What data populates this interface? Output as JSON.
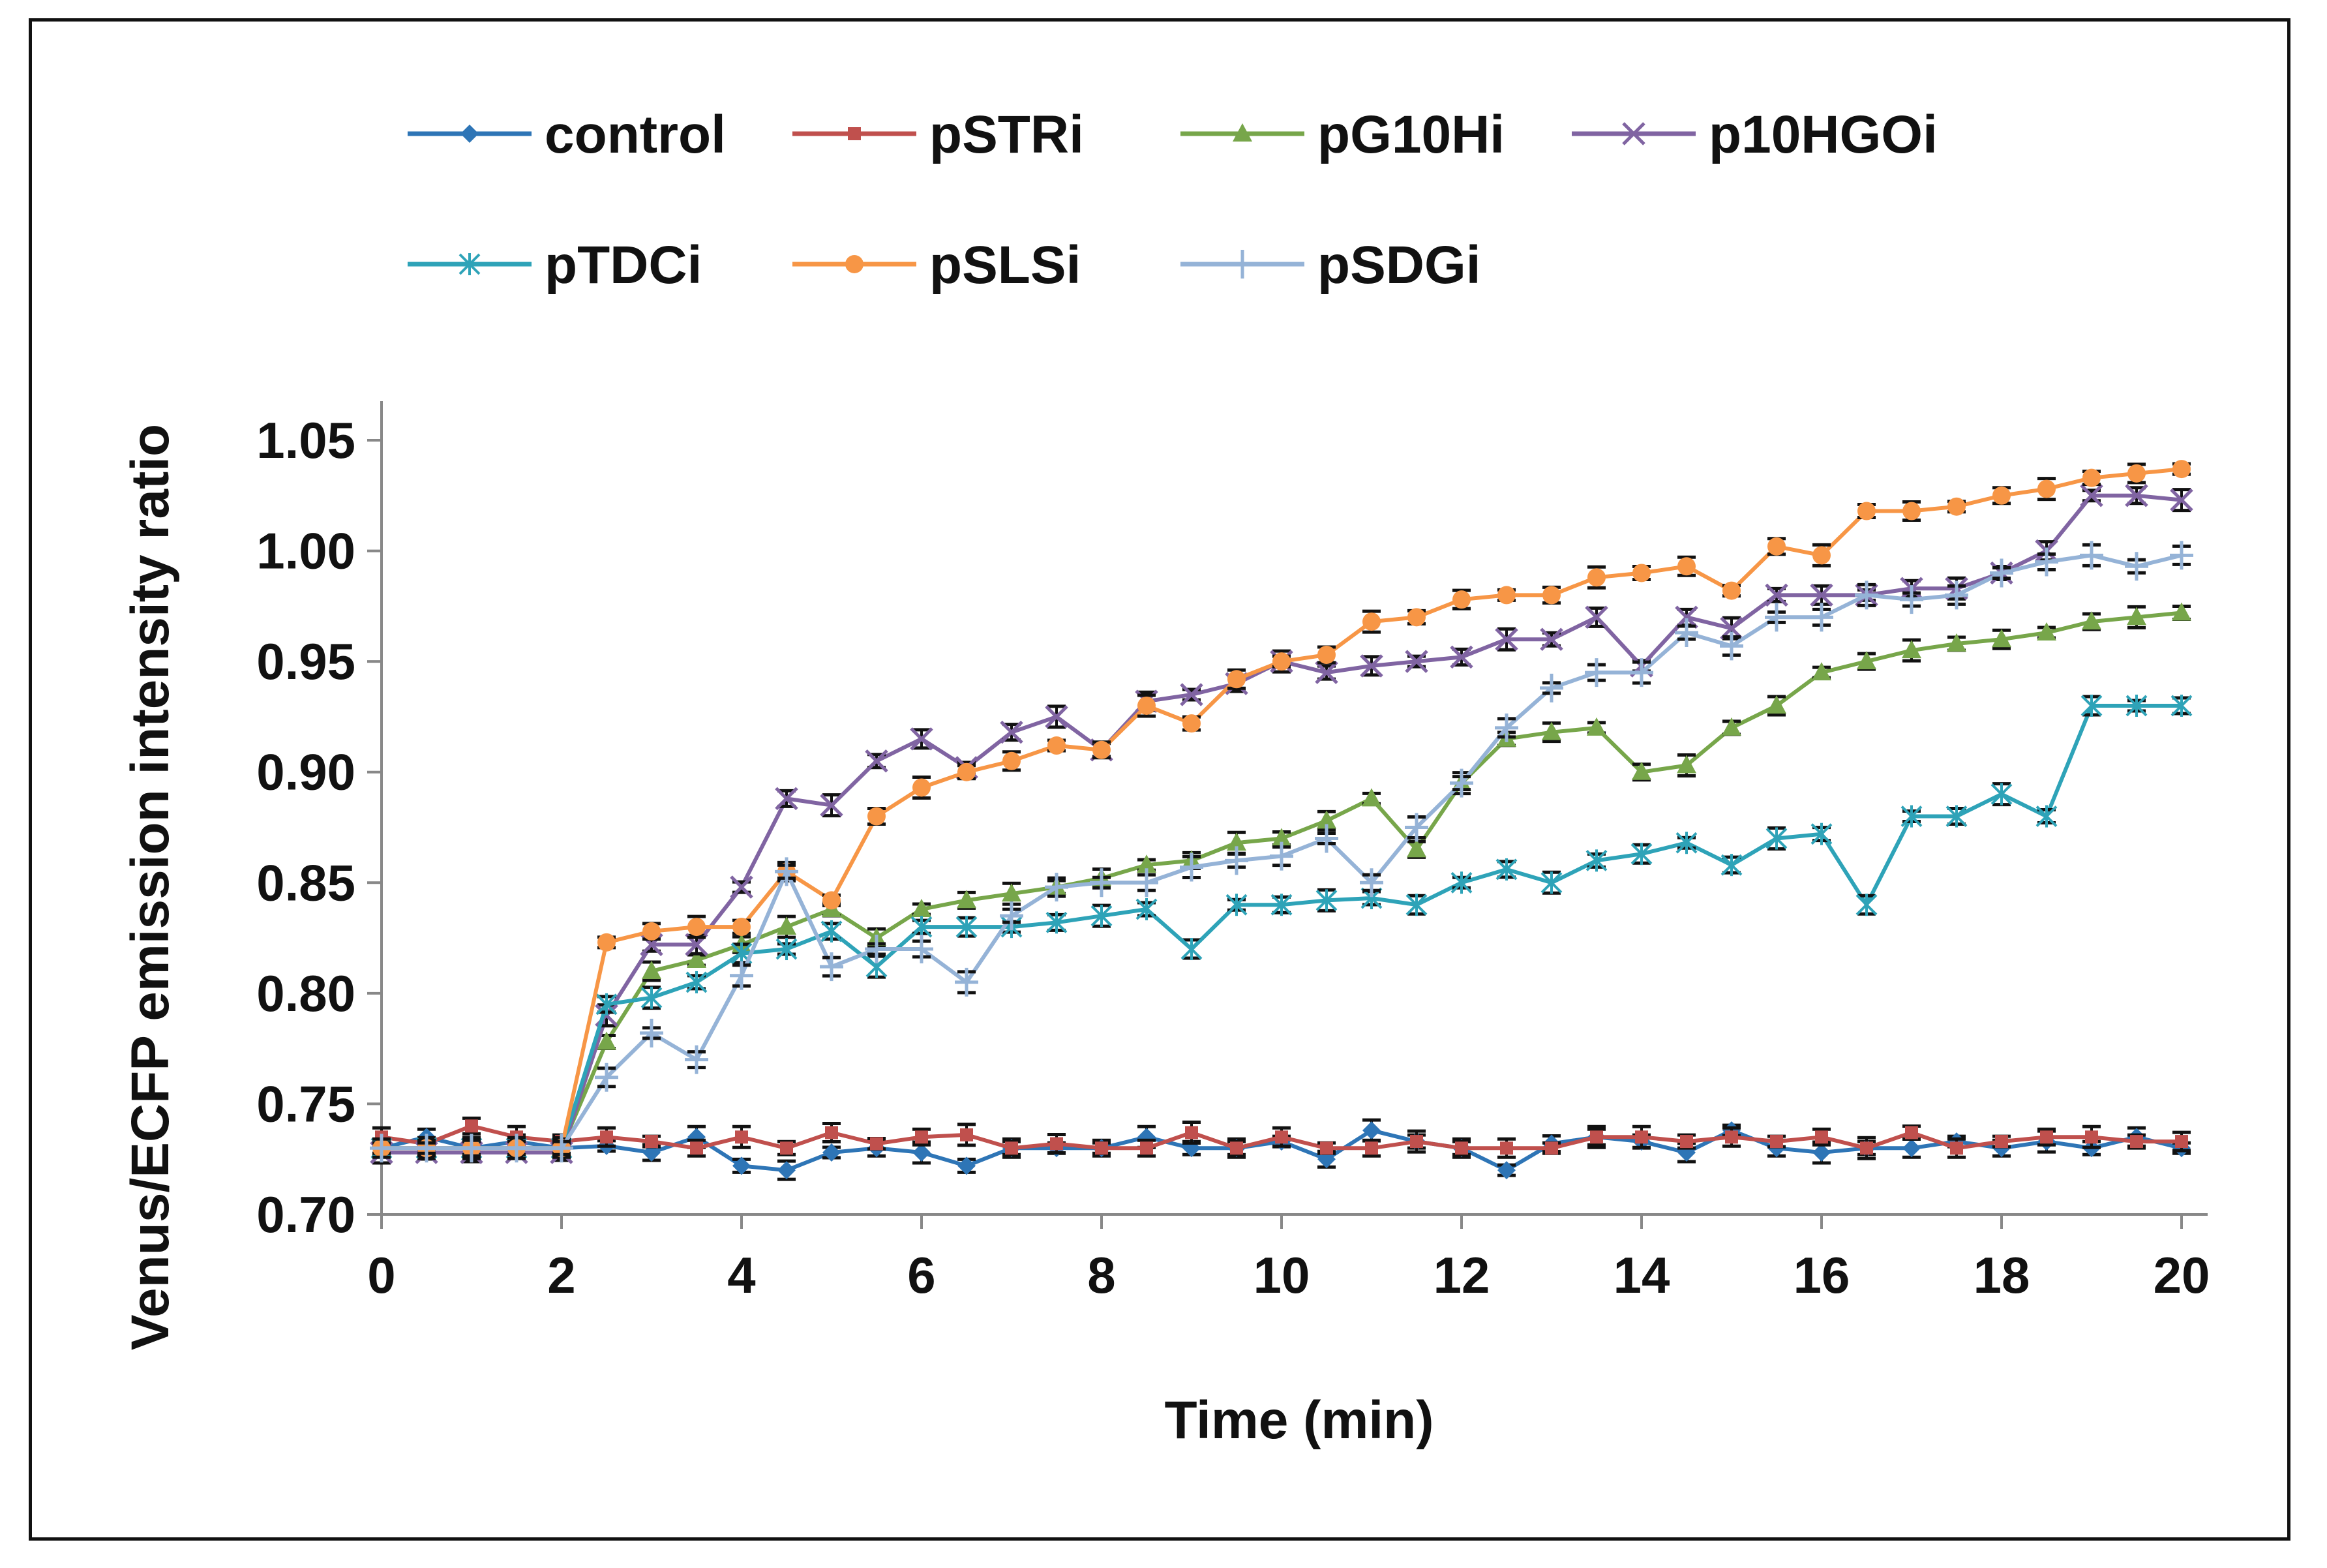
{
  "chart_data": {
    "type": "line",
    "title": "",
    "xlabel": "Time (min)",
    "ylabel": "Venus/ECFP emission intensity ratio",
    "xlim": [
      0,
      20
    ],
    "ylim": [
      0.7,
      1.05
    ],
    "xticks": [
      "0",
      "2",
      "4",
      "6",
      "8",
      "10",
      "12",
      "14",
      "16",
      "18",
      "20"
    ],
    "yticks": [
      "0.70",
      "0.75",
      "0.80",
      "0.85",
      "0.90",
      "0.95",
      "1.00",
      "1.05"
    ],
    "legend_position": "top",
    "x": [
      0,
      0.5,
      1,
      1.5,
      2,
      2.5,
      3,
      3.5,
      4,
      4.5,
      5,
      5.5,
      6,
      6.5,
      7,
      7.5,
      8,
      8.5,
      9,
      9.5,
      10,
      10.5,
      11,
      11.5,
      12,
      12.5,
      13,
      13.5,
      14,
      14.5,
      15,
      15.5,
      16,
      16.5,
      17,
      17.5,
      18,
      18.5,
      19,
      19.5,
      20
    ],
    "series": [
      {
        "name": "control",
        "color": "#2e75b6",
        "marker": "diamond",
        "values": [
          0.73,
          0.735,
          0.73,
          0.733,
          0.73,
          0.731,
          0.728,
          0.735,
          0.722,
          0.72,
          0.728,
          0.73,
          0.728,
          0.722,
          0.73,
          0.73,
          0.73,
          0.735,
          0.73,
          0.73,
          0.733,
          0.725,
          0.738,
          0.733,
          0.73,
          0.72,
          0.732,
          0.735,
          0.733,
          0.728,
          0.738,
          0.73,
          0.728,
          0.73,
          0.73,
          0.733,
          0.73,
          0.733,
          0.73,
          0.735,
          0.73
        ]
      },
      {
        "name": "pSTRi",
        "color": "#c0504d",
        "marker": "square",
        "values": [
          0.735,
          0.732,
          0.74,
          0.735,
          0.733,
          0.735,
          0.733,
          0.73,
          0.735,
          0.73,
          0.737,
          0.732,
          0.735,
          0.736,
          0.73,
          0.732,
          0.73,
          0.73,
          0.737,
          0.73,
          0.735,
          0.73,
          0.73,
          0.733,
          0.73,
          0.73,
          0.73,
          0.735,
          0.735,
          0.733,
          0.735,
          0.733,
          0.735,
          0.73,
          0.737,
          0.73,
          0.733,
          0.735,
          0.735,
          0.733,
          0.733
        ]
      },
      {
        "name": "pG10Hi",
        "color": "#77a64a",
        "marker": "triangle",
        "values": [
          0.73,
          0.73,
          0.73,
          0.73,
          0.73,
          0.778,
          0.81,
          0.815,
          0.822,
          0.83,
          0.838,
          0.825,
          0.838,
          0.842,
          0.845,
          0.848,
          0.852,
          0.858,
          0.86,
          0.868,
          0.87,
          0.878,
          0.888,
          0.865,
          0.895,
          0.915,
          0.918,
          0.92,
          0.9,
          0.903,
          0.92,
          0.93,
          0.945,
          0.95,
          0.955,
          0.958,
          0.96,
          0.963,
          0.968,
          0.97,
          0.972
        ]
      },
      {
        "name": "p10HGOi",
        "color": "#8064a2",
        "marker": "x",
        "values": [
          0.728,
          0.728,
          0.728,
          0.728,
          0.728,
          0.79,
          0.822,
          0.822,
          0.848,
          0.888,
          0.885,
          0.905,
          0.915,
          0.902,
          0.918,
          0.925,
          0.91,
          0.932,
          0.935,
          0.94,
          0.95,
          0.945,
          0.948,
          0.95,
          0.952,
          0.96,
          0.96,
          0.97,
          0.948,
          0.97,
          0.965,
          0.98,
          0.98,
          0.98,
          0.983,
          0.983,
          0.99,
          1.0,
          1.025,
          1.025,
          1.023
        ]
      },
      {
        "name": "pTDCi",
        "color": "#2ea3b8",
        "marker": "star",
        "values": [
          0.73,
          0.73,
          0.73,
          0.73,
          0.73,
          0.795,
          0.798,
          0.805,
          0.818,
          0.82,
          0.828,
          0.812,
          0.83,
          0.83,
          0.83,
          0.832,
          0.835,
          0.838,
          0.82,
          0.84,
          0.84,
          0.842,
          0.843,
          0.84,
          0.85,
          0.856,
          0.85,
          0.86,
          0.863,
          0.868,
          0.858,
          0.87,
          0.872,
          0.84,
          0.88,
          0.88,
          0.89,
          0.88,
          0.93,
          0.93,
          0.93
        ]
      },
      {
        "name": "pSLSi",
        "color": "#f79646",
        "marker": "circle",
        "values": [
          0.73,
          0.73,
          0.73,
          0.73,
          0.73,
          0.823,
          0.828,
          0.83,
          0.83,
          0.855,
          0.842,
          0.88,
          0.893,
          0.9,
          0.905,
          0.912,
          0.91,
          0.93,
          0.922,
          0.942,
          0.95,
          0.953,
          0.968,
          0.97,
          0.978,
          0.98,
          0.98,
          0.988,
          0.99,
          0.993,
          0.982,
          1.002,
          0.998,
          1.018,
          1.018,
          1.02,
          1.025,
          1.028,
          1.033,
          1.035,
          1.037
        ]
      },
      {
        "name": "pSDGi",
        "color": "#95b3d7",
        "marker": "plus",
        "values": [
          0.73,
          0.73,
          0.73,
          0.73,
          0.73,
          0.762,
          0.782,
          0.77,
          0.808,
          0.855,
          0.812,
          0.82,
          0.82,
          0.805,
          0.835,
          0.848,
          0.85,
          0.85,
          0.857,
          0.86,
          0.862,
          0.87,
          0.85,
          0.875,
          0.895,
          0.92,
          0.938,
          0.945,
          0.945,
          0.963,
          0.957,
          0.97,
          0.97,
          0.98,
          0.978,
          0.98,
          0.99,
          0.995,
          0.998,
          0.993,
          0.998
        ]
      }
    ]
  }
}
